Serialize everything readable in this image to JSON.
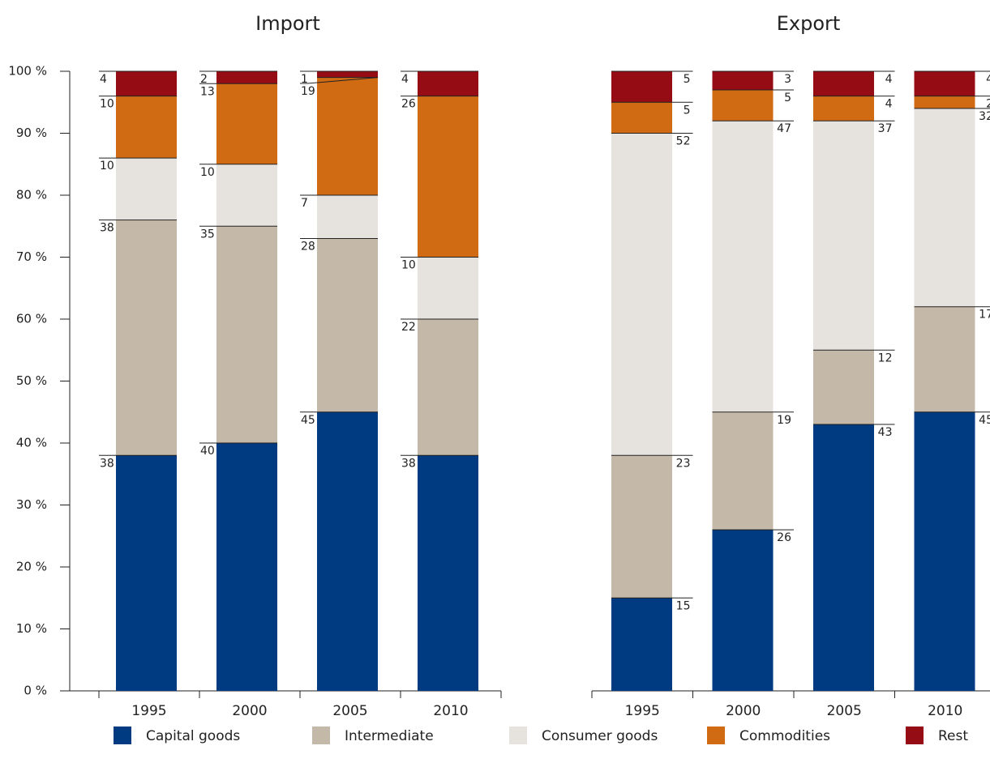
{
  "chart_data": [
    {
      "type": "stacked_bar",
      "title": "Import",
      "categories": [
        "1995",
        "2000",
        "2005",
        "2010"
      ],
      "ylim": [
        0,
        100
      ],
      "yticks": [
        {
          "value": 0,
          "label": "0 %"
        },
        {
          "value": 10,
          "label": "10 %"
        },
        {
          "value": 20,
          "label": "20 %"
        },
        {
          "value": 30,
          "label": "30 %"
        },
        {
          "value": 40,
          "label": "40 %"
        },
        {
          "value": 50,
          "label": "50 %"
        },
        {
          "value": 60,
          "label": "60 %"
        },
        {
          "value": 70,
          "label": "70 %"
        },
        {
          "value": 80,
          "label": "80 %"
        },
        {
          "value": 90,
          "label": "90 %"
        },
        {
          "value": 100,
          "label": "100 %"
        }
      ],
      "series": [
        {
          "name": "Capital goods",
          "color": "#003a80",
          "values": [
            38,
            40,
            45,
            38
          ]
        },
        {
          "name": "Intermediate",
          "color": "#c4b8a8",
          "values": [
            38,
            35,
            28,
            22
          ]
        },
        {
          "name": "Consumer goods",
          "color": "#e6e3df",
          "values": [
            10,
            10,
            7,
            10
          ]
        },
        {
          "name": "Commodities",
          "color": "#d06b14",
          "values": [
            10,
            13,
            19,
            26
          ]
        },
        {
          "name": "Rest",
          "color": "#960c14",
          "values": [
            4,
            2,
            1,
            4
          ]
        }
      ]
    },
    {
      "type": "stacked_bar",
      "title": "Export",
      "categories": [
        "1995",
        "2000",
        "2005",
        "2010"
      ],
      "ylim": [
        0,
        100
      ],
      "series": [
        {
          "values": [
            15,
            26,
            43,
            45
          ]
        },
        {
          "values": [
            23,
            19,
            12,
            17
          ]
        },
        {
          "values": [
            52,
            47,
            37,
            32
          ]
        },
        {
          "values": [
            5,
            5,
            4,
            2
          ]
        },
        {
          "values": [
            5,
            3,
            4,
            4
          ]
        }
      ]
    }
  ]
}
